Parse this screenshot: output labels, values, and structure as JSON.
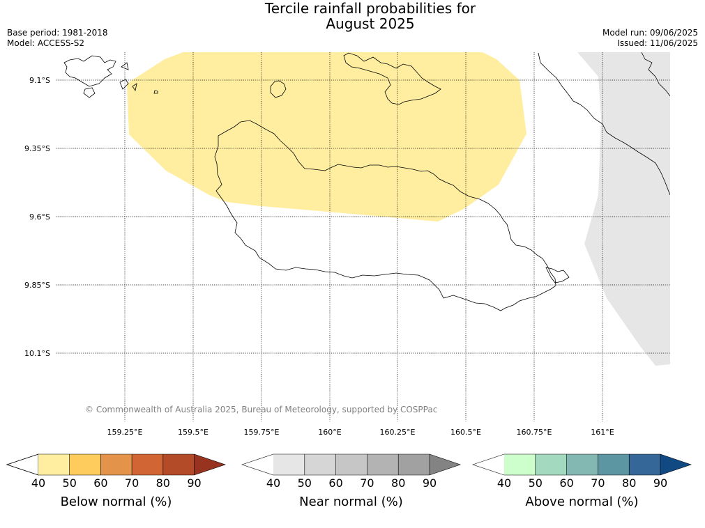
{
  "title": {
    "line1": "Tercile rainfall probabilities for",
    "line2": "August 2025"
  },
  "meta": {
    "base_period": "Base period: 1981-2018",
    "model": "Model: ACCESS-S2",
    "model_run": "Model run: 09/06/2025",
    "issued": "Issued: 11/06/2025"
  },
  "map": {
    "lon_ticks": [
      "159.25°E",
      "159.5°E",
      "159.75°E",
      "160°E",
      "160.25°E",
      "160.5°E",
      "160.75°E",
      "161°E"
    ],
    "lat_ticks": [
      "9.1°S",
      "9.35°S",
      "9.6°S",
      "9.85°S",
      "10.1°S"
    ],
    "copyright": "© Commonwealth of Australia 2025, Bureau of Meteorology, supported by COSPPac",
    "regions": [
      {
        "category": "below",
        "band": "40-50",
        "color": "#ffeda0"
      },
      {
        "category": "near",
        "band": "40-50",
        "color": "#e6e6e6"
      }
    ]
  },
  "colorbars": [
    {
      "title": "Below normal (%)",
      "ticks": [
        "40",
        "50",
        "60",
        "70",
        "80",
        "90"
      ],
      "colors": [
        "#ffeda0",
        "#fecc5c",
        "#e3944a",
        "#d16534",
        "#b34a28",
        "#98331f"
      ]
    },
    {
      "title": "Near normal (%)",
      "ticks": [
        "40",
        "50",
        "60",
        "70",
        "80",
        "90"
      ],
      "colors": [
        "#e6e6e6",
        "#d6d6d6",
        "#c6c6c6",
        "#b3b3b3",
        "#a1a1a1",
        "#838383"
      ]
    },
    {
      "title": "Above normal (%)",
      "ticks": [
        "40",
        "50",
        "60",
        "70",
        "80",
        "90"
      ],
      "colors": [
        "#ccffcc",
        "#a3d9bf",
        "#82b7b2",
        "#5c96a2",
        "#356898",
        "#114a82"
      ]
    }
  ]
}
